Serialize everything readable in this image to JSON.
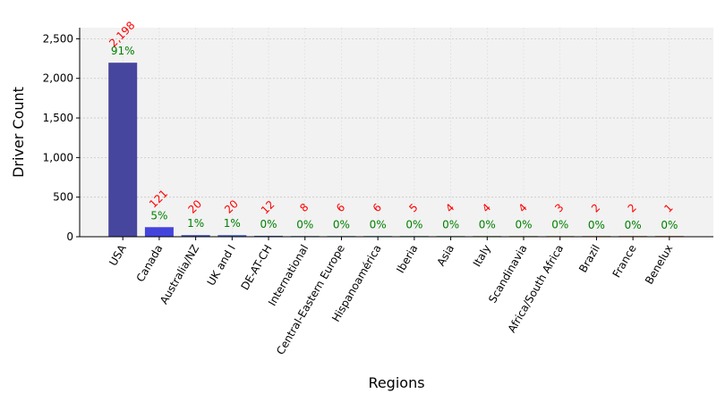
{
  "chart_data": {
    "type": "bar",
    "title": "",
    "xlabel": "Regions",
    "ylabel": "Driver Count",
    "ylim": [
      0,
      2640
    ],
    "yticks": [
      0,
      500,
      1000,
      1500,
      2000,
      2500
    ],
    "ytick_labels": [
      "0",
      "500",
      "1,000",
      "1,500",
      "2,000",
      "2,500"
    ],
    "grid": true,
    "categories": [
      "USA",
      "Canada",
      "Australia/NZ",
      "UK and I",
      "DE-AT-CH",
      "International",
      "Central-Eastern Europe",
      "Hispanoamérica",
      "Iberia",
      "Asia",
      "Italy",
      "Scandinavia",
      "Africa/South Africa",
      "Brazil",
      "France",
      "Benelux"
    ],
    "values": [
      2198,
      121,
      20,
      20,
      12,
      8,
      6,
      6,
      5,
      4,
      4,
      4,
      3,
      2,
      2,
      1
    ],
    "value_labels": [
      "2,198",
      "121",
      "20",
      "20",
      "12",
      "8",
      "6",
      "6",
      "5",
      "4",
      "4",
      "4",
      "3",
      "2",
      "2",
      "1"
    ],
    "percent_labels": [
      "91%",
      "5%",
      "1%",
      "1%",
      "0%",
      "0%",
      "0%",
      "0%",
      "0%",
      "0%",
      "0%",
      "0%",
      "0%",
      "0%",
      "0%",
      "0%"
    ],
    "colors": [
      "#46469e",
      "#4444dd",
      "#3a4ab8",
      "#3c5cc8",
      "#3a66b0",
      "#3a80b0",
      "#3a8aa0",
      "#3a9090",
      "#3a9a7a",
      "#4aa060",
      "#6aa040",
      "#8a9a30",
      "#b08a30",
      "#c07030",
      "#c05a30",
      "#c04a30"
    ],
    "value_label_color": "#ff0000",
    "percent_label_color": "#008000"
  }
}
